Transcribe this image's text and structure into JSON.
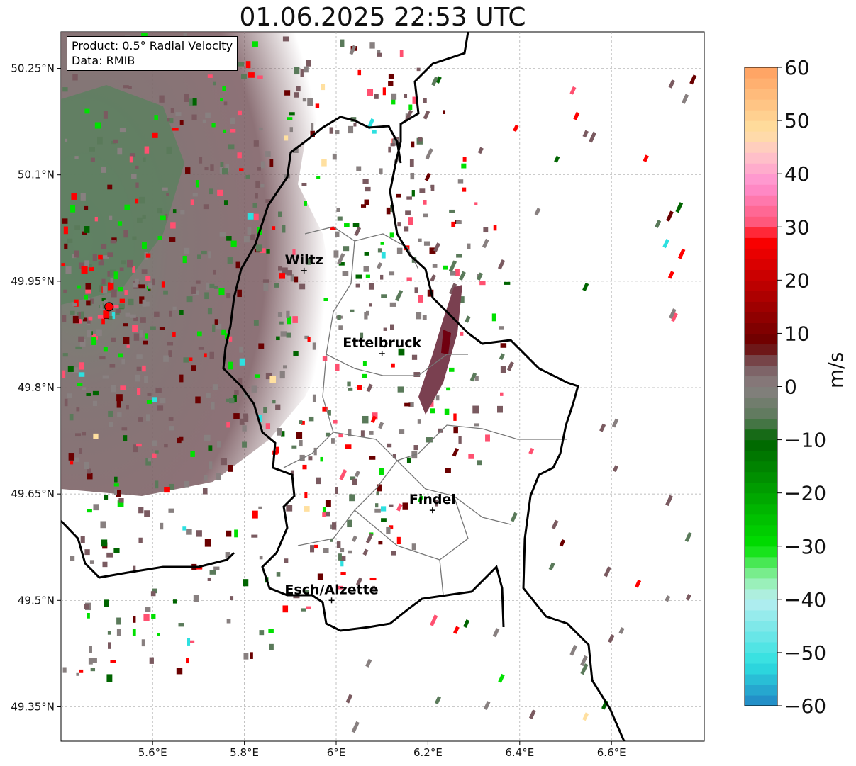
{
  "title": "01.06.2025 22:53 UTC",
  "info": {
    "product": "Product: 0.5° Radial Velocity",
    "data": "Data: RMIB"
  },
  "axes": {
    "lon_ticks": [
      "5.6°E",
      "5.8°E",
      "6°E",
      "6.2°E",
      "6.4°E",
      "6.6°E"
    ],
    "lat_ticks": [
      "50.25°N",
      "50.1°N",
      "49.95°N",
      "49.8°N",
      "49.65°N",
      "49.5°N",
      "49.35°N"
    ]
  },
  "cities": [
    {
      "name": "Wiltz",
      "lon": 5.93,
      "lat": 49.965
    },
    {
      "name": "Ettelbruck",
      "lon": 6.1,
      "lat": 49.848
    },
    {
      "name": "Findel",
      "lon": 6.21,
      "lat": 49.627
    },
    {
      "name": "Esch/Alzette",
      "lon": 5.99,
      "lat": 49.5
    }
  ],
  "radar_site": {
    "lon": 5.505,
    "lat": 49.914,
    "color": "#ff0000"
  },
  "colorbar": {
    "unit": "m/s",
    "min": -60,
    "max": 60,
    "tick_labels": [
      "60",
      "50",
      "40",
      "30",
      "20",
      "10",
      "0",
      "−10",
      "−20",
      "−30",
      "−40",
      "−50",
      "−60"
    ],
    "colors": {
      "blue": "#2185c5",
      "cyan": "#2ee0e0",
      "light_cyan": "#b8eef0",
      "light_green": "#90f0a8",
      "bright_green": "#00e000",
      "dark_green": "#006400",
      "gray_green": "#5a7a5a",
      "gray": "#888080",
      "gray_brown": "#7a5a60",
      "dark_red": "#6a0000",
      "red": "#ff0000",
      "pink_red": "#ff5070",
      "pink": "#ff90d0",
      "light_pink": "#ffc8c8",
      "light_orange": "#ffe0a0",
      "orange": "#ffa060"
    }
  }
}
